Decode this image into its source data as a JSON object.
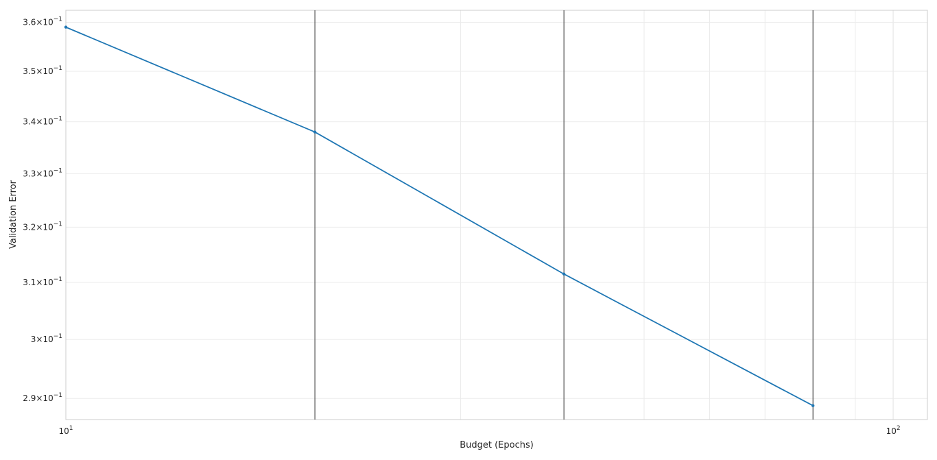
{
  "chart_data": {
    "type": "line",
    "xlabel": "Budget (Epochs)",
    "ylabel": "Validation Error",
    "xscale": "log",
    "yscale": "log",
    "xlim": [
      10,
      110
    ],
    "ylim": [
      0.2865,
      0.3625
    ],
    "grid": true,
    "x_ticks": [
      {
        "value": 10,
        "base": "10",
        "exp": "1"
      },
      {
        "value": 100,
        "base": "10",
        "exp": "2"
      }
    ],
    "y_ticks": [
      {
        "value": 0.29,
        "mant": "2.9",
        "exp": "−1"
      },
      {
        "value": 0.3,
        "mant": "3",
        "exp": "−1"
      },
      {
        "value": 0.31,
        "mant": "3.1",
        "exp": "−1"
      },
      {
        "value": 0.32,
        "mant": "3.2",
        "exp": "−1"
      },
      {
        "value": 0.33,
        "mant": "3.3",
        "exp": "−1"
      },
      {
        "value": 0.34,
        "mant": "3.4",
        "exp": "−1"
      },
      {
        "value": 0.35,
        "mant": "3.5",
        "exp": "−1"
      },
      {
        "value": 0.36,
        "mant": "3.6",
        "exp": "−1"
      }
    ],
    "vlines": [
      20,
      40,
      80
    ],
    "series": [
      {
        "color": "#1f77b4",
        "x": [
          10,
          20,
          40,
          80
        ],
        "y": [
          0.359,
          0.338,
          0.3115,
          0.2888
        ]
      }
    ]
  }
}
